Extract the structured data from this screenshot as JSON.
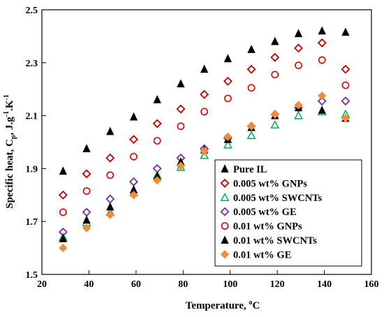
{
  "chart_data": {
    "type": "scatter",
    "xlabel": "Temperature, ",
    "xlabel_unit_sup": "o",
    "xlabel_unit": "C",
    "ylabel_parts": [
      "Specific heat, C",
      "p",
      ", J.g",
      "-1",
      ".K",
      "-1"
    ],
    "xlim": [
      20,
      160
    ],
    "ylim": [
      1.5,
      2.5
    ],
    "x_ticks": [
      20,
      40,
      60,
      80,
      100,
      120,
      140,
      160
    ],
    "y_ticks": [
      1.5,
      1.7,
      1.9,
      2.1,
      2.3,
      2.5
    ],
    "y_tick_labels": [
      "1.5",
      "1.7",
      "1.9",
      "2.1",
      "2.3",
      "2.5"
    ],
    "grid": false,
    "legend_position": "bottom-right",
    "series": [
      {
        "name": "Pure IL",
        "marker": "triangle-filled",
        "color": "#000000",
        "x": [
          29,
          39,
          49,
          59,
          69,
          79,
          89,
          99,
          109,
          119,
          129,
          139,
          149
        ],
        "y": [
          1.89,
          1.975,
          2.04,
          2.095,
          2.16,
          2.22,
          2.275,
          2.315,
          2.35,
          2.38,
          2.41,
          2.42,
          2.415
        ]
      },
      {
        "name": "0.005 wt% GNPs",
        "marker": "diamond-open",
        "color": "#c00000",
        "x": [
          29,
          39,
          49,
          59,
          69,
          79,
          89,
          99,
          109,
          119,
          129,
          139,
          149
        ],
        "y": [
          1.8,
          1.88,
          1.94,
          2.01,
          2.07,
          2.125,
          2.18,
          2.23,
          2.275,
          2.32,
          2.355,
          2.375,
          2.275
        ]
      },
      {
        "name": "0.005 wt% SWCNTs",
        "marker": "triangle-open",
        "color": "#00b050",
        "x": [
          29,
          39,
          49,
          59,
          69,
          79,
          89,
          99,
          109,
          119,
          129,
          139,
          149
        ],
        "y": [
          1.64,
          1.695,
          1.735,
          1.81,
          1.875,
          1.905,
          1.95,
          1.99,
          2.025,
          2.065,
          2.1,
          2.115,
          2.105
        ]
      },
      {
        "name": "0.005 wt% GE",
        "marker": "diamond-open",
        "color": "#7030a0",
        "x": [
          29,
          39,
          49,
          59,
          69,
          79,
          89,
          99,
          109,
          119,
          129,
          139,
          149
        ],
        "y": [
          1.66,
          1.735,
          1.785,
          1.85,
          1.9,
          1.94,
          1.975,
          2.015,
          2.06,
          2.105,
          2.13,
          2.155,
          2.155
        ]
      },
      {
        "name": "0.01 wt% GNPs",
        "marker": "circle-open",
        "color": "#e00000",
        "x": [
          29,
          39,
          49,
          59,
          69,
          79,
          89,
          99,
          109,
          119,
          129,
          139,
          149
        ],
        "y": [
          1.735,
          1.815,
          1.875,
          1.945,
          2.005,
          2.06,
          2.115,
          2.165,
          2.205,
          2.255,
          2.29,
          2.31,
          2.215
        ]
      },
      {
        "name": "0.01 wt% SWCNTs",
        "marker": "triangle-filled",
        "color": "#000000",
        "x": [
          29,
          39,
          49,
          59,
          69,
          79,
          89,
          99,
          109,
          119,
          129,
          139,
          149
        ],
        "y": [
          1.635,
          1.705,
          1.755,
          1.82,
          1.87,
          1.925,
          1.97,
          2.01,
          2.055,
          2.1,
          2.13,
          2.12,
          2.09
        ]
      },
      {
        "name": "0.01 wt% GE",
        "marker": "diamond-filled",
        "color": "#f28c3a",
        "x": [
          29,
          39,
          49,
          59,
          69,
          79,
          89,
          99,
          109,
          119,
          129,
          139,
          149
        ],
        "y": [
          1.6,
          1.675,
          1.725,
          1.8,
          1.855,
          1.91,
          1.965,
          2.02,
          2.06,
          2.105,
          2.14,
          2.175,
          2.09
        ]
      }
    ]
  }
}
